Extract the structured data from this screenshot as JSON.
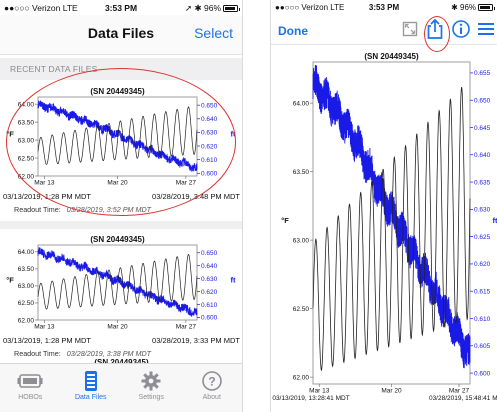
{
  "left": {
    "status": {
      "carrier": "●●○○○ Verizon  LTE",
      "time": "3:53 PM",
      "right": "➚ ✱ 96%"
    },
    "nav": {
      "title": "Data Files",
      "select_label": "Select"
    },
    "section_header": "RECENT DATA FILES",
    "cards": [
      {
        "chart_data": {
          "type": "line",
          "title": "(SN 20449345)",
          "ylabel": "°F",
          "y2label": "ft",
          "x_ticks": [
            "Mar 13",
            "Mar 20",
            "Mar 27"
          ],
          "y_ticks": [
            "64.00",
            "63.50",
            "63.00",
            "62.50",
            "62.00"
          ],
          "y2_ticks": [
            "0.650",
            "0.640",
            "0.630",
            "0.620",
            "0.610",
            "0.600"
          ],
          "ylim": [
            62.0,
            64.2
          ],
          "y2lim": [
            0.598,
            0.656
          ],
          "series": [
            {
              "axis": "left",
              "color": "#1a1ae6",
              "trend": [
                64.0,
                63.8,
                63.55,
                63.3,
                63.0,
                62.7,
                62.45,
                62.2
              ],
              "noise": 0.12
            },
            {
              "axis": "right",
              "color": "#222222",
              "oscillation": {
                "start_center": 0.616,
                "end_center": 0.632,
                "start_amp": 0.01,
                "end_amp": 0.018,
                "cycles": 14
              }
            }
          ]
        },
        "start": "03/13/2019, 1:28 PM MDT",
        "end": "03/28/2019, 3:48 PM MDT",
        "readout_label": "Readout Time:",
        "readout_value": "03/28/2019, 3:52 PM MDT"
      },
      {
        "chart_data": {
          "type": "line",
          "title": "(SN 20449345)",
          "ylabel": "°F",
          "y2label": "ft",
          "x_ticks": [
            "Mar 13",
            "Mar 20",
            "Mar 27"
          ],
          "y_ticks": [
            "64.00",
            "63.50",
            "63.00",
            "62.50",
            "62.00"
          ],
          "y2_ticks": [
            "0.650",
            "0.640",
            "0.630",
            "0.620",
            "0.610",
            "0.600"
          ],
          "ylim": [
            62.0,
            64.2
          ],
          "y2lim": [
            0.598,
            0.656
          ],
          "series": [
            {
              "axis": "left",
              "color": "#1a1ae6",
              "trend": [
                64.0,
                63.8,
                63.55,
                63.3,
                63.0,
                62.7,
                62.45,
                62.2
              ],
              "noise": 0.12
            },
            {
              "axis": "right",
              "color": "#222222",
              "oscillation": {
                "start_center": 0.616,
                "end_center": 0.632,
                "start_amp": 0.01,
                "end_amp": 0.018,
                "cycles": 14
              }
            }
          ]
        },
        "start": "03/13/2019, 1:28 PM MDT",
        "end": "03/28/2019, 3:33 PM MDT",
        "readout_label": "Readout Time:",
        "readout_value": "03/28/2019, 3:38 PM MDT"
      }
    ],
    "peek_title": "(SN 20449345)",
    "tabs": [
      {
        "label": "HOBOs",
        "icon": "hobo-device-icon"
      },
      {
        "label": "Data Files",
        "icon": "data-files-icon"
      },
      {
        "label": "Settings",
        "icon": "gear-icon"
      },
      {
        "label": "About",
        "icon": "question-icon"
      }
    ]
  },
  "right": {
    "status": {
      "carrier": "●●○○○ Verizon  LTE",
      "time": "3:53 PM",
      "right": "✱ 96%"
    },
    "nav": {
      "done_label": "Done"
    },
    "chart_data": {
      "type": "line",
      "title": "(SN 20449345)",
      "ylabel": "°F",
      "y2label": "ft",
      "x_ticks": [
        "Mar 13",
        "Mar 20",
        "Mar 27"
      ],
      "start_label": "03/13/2019, 13:28:41 MDT",
      "end_label": "03/28/2019, 15:48:41 M...",
      "y_ticks": [
        "64.00",
        "63.50",
        "63.00",
        "62.50",
        "62.00"
      ],
      "y2_ticks": [
        "0.655",
        "0.650",
        "0.645",
        "0.640",
        "0.635",
        "0.630",
        "0.625",
        "0.620",
        "0.615",
        "0.610",
        "0.605",
        "0.600"
      ],
      "ylim": [
        61.95,
        64.3
      ],
      "y2lim": [
        0.598,
        0.657
      ],
      "series": [
        {
          "axis": "left",
          "color": "#1a1ae6",
          "trend": [
            64.15,
            63.95,
            63.7,
            63.35,
            63.05,
            62.75,
            62.45,
            62.15
          ],
          "noise": 0.12
        },
        {
          "axis": "right",
          "color": "#222222",
          "oscillation": {
            "start_center": 0.612,
            "end_center": 0.632,
            "start_amp": 0.012,
            "end_amp": 0.022,
            "cycles": 14
          }
        }
      ]
    }
  }
}
